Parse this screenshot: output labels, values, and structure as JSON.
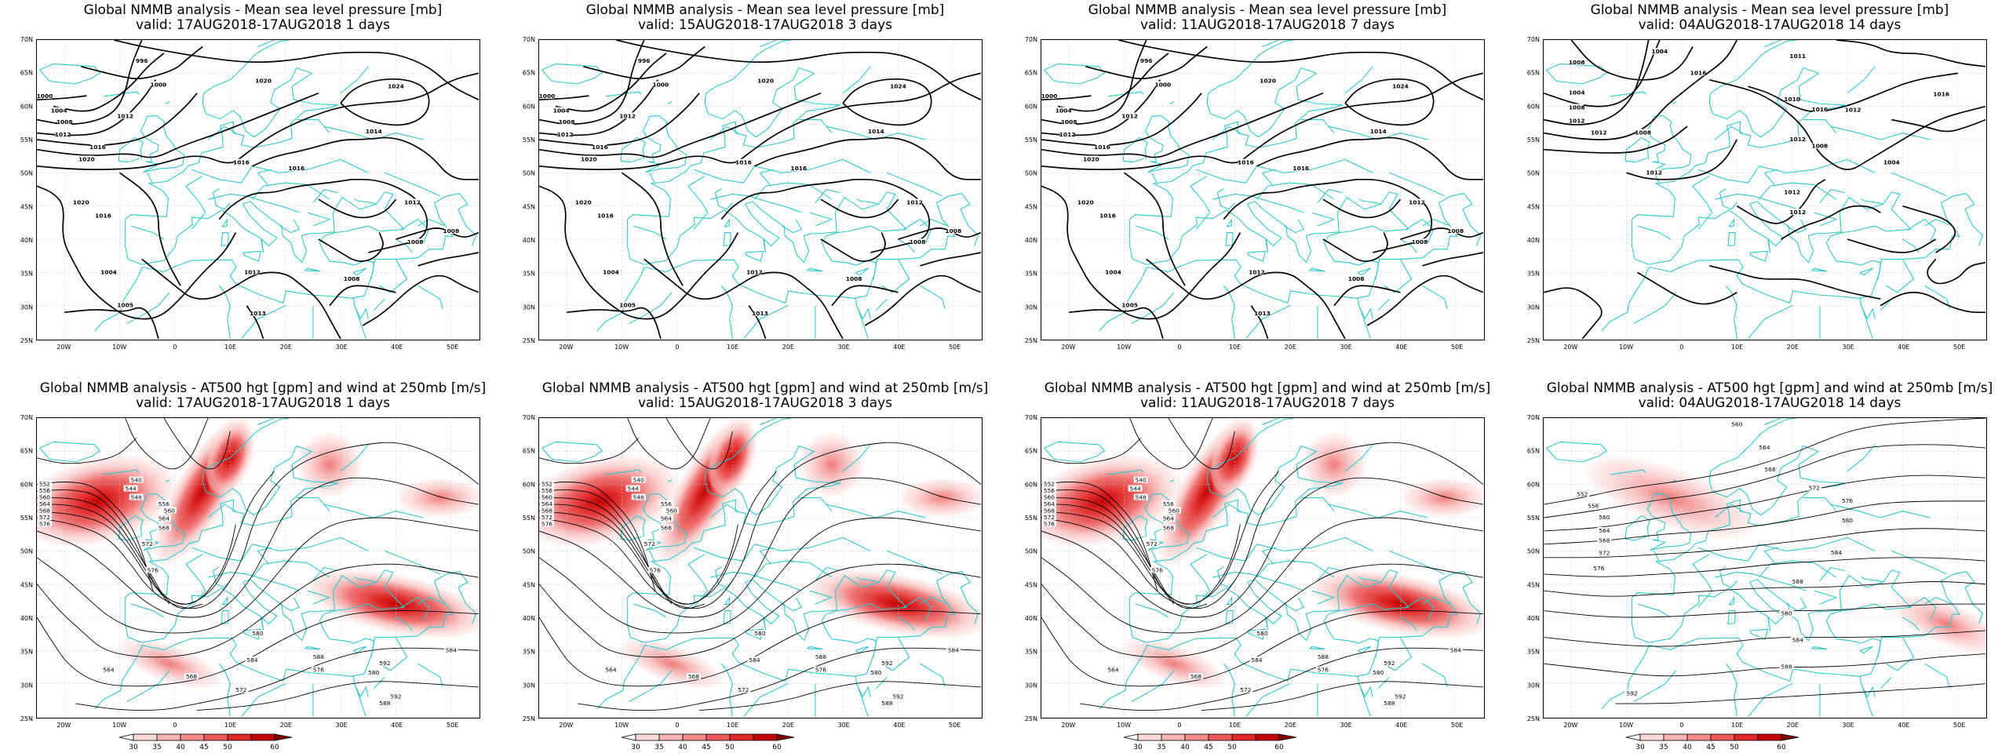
{
  "figure": {
    "rows": [
      {
        "kind": "mslp",
        "title": "Global NMMB analysis - Mean sea level pressure [mb]",
        "panels": [
          {
            "valid": "valid: 17AUG2018-17AUG2018   1 days",
            "contour_labels": [
              "1020",
              "996",
              "1000",
              "1000",
              "1004",
              "1008",
              "1012",
              "1012",
              "1016",
              "1020",
              "1024",
              "1014",
              "1016",
              "1016",
              "1020",
              "1016",
              "1012",
              "1008",
              "1008",
              "1004",
              "1012",
              "1005",
              "1013",
              "1008"
            ]
          },
          {
            "valid": "valid: 15AUG2018-17AUG2018   3 days",
            "contour_labels": [
              "1020",
              "996",
              "1000",
              "1000",
              "1004",
              "1008",
              "1012",
              "1012",
              "1016",
              "1020",
              "1024",
              "1014",
              "1016",
              "1016",
              "1020",
              "1016",
              "1012",
              "1008",
              "1008",
              "1004",
              "1012",
              "1005",
              "1013",
              "1008"
            ]
          },
          {
            "valid": "valid: 11AUG2018-17AUG2018   7 days",
            "contour_labels": [
              "1020",
              "996",
              "1000",
              "1000",
              "1004",
              "1008",
              "1012",
              "1012",
              "1016",
              "1020",
              "1024",
              "1014",
              "1016",
              "1016",
              "1020",
              "1016",
              "1012",
              "1008",
              "1008",
              "1004",
              "1012",
              "1005",
              "1013",
              "1008"
            ]
          },
          {
            "valid": "valid: 04AUG2018-17AUG2018   14 days",
            "contour_labels": [
              "1004",
              "1008",
              "1004",
              "1008",
              "1012",
              "1011",
              "1016",
              "1010",
              "1012",
              "1016",
              "1012",
              "1016",
              "1012",
              "1008",
              "1012",
              "1008",
              "1004",
              "1012",
              "1012"
            ]
          }
        ]
      },
      {
        "kind": "z500",
        "title": "Global NMMB analysis - AT500 hgt [gpm] and wind at 250mb [m/s]",
        "panels": [
          {
            "valid": "valid: 17AUG2018-17AUG2018   1 days",
            "contour_labels": [
              "552",
              "556",
              "560",
              "564",
              "568",
              "572",
              "576",
              "540",
              "544",
              "548",
              "556",
              "560",
              "564",
              "568",
              "572",
              "576",
              "580",
              "584",
              "588",
              "592",
              "564",
              "568",
              "572",
              "576",
              "580",
              "584",
              "588",
              "592"
            ]
          },
          {
            "valid": "valid: 15AUG2018-17AUG2018   3 days",
            "contour_labels": [
              "552",
              "556",
              "560",
              "564",
              "568",
              "572",
              "576",
              "540",
              "544",
              "548",
              "556",
              "560",
              "564",
              "568",
              "572",
              "576",
              "580",
              "584",
              "588",
              "592",
              "564",
              "568",
              "572",
              "576",
              "580",
              "584",
              "588",
              "592"
            ]
          },
          {
            "valid": "valid: 11AUG2018-17AUG2018   7 days",
            "contour_labels": [
              "552",
              "556",
              "560",
              "564",
              "568",
              "572",
              "576",
              "540",
              "544",
              "548",
              "556",
              "560",
              "564",
              "568",
              "572",
              "576",
              "580",
              "584",
              "588",
              "592",
              "564",
              "568",
              "572",
              "576",
              "580",
              "584",
              "588",
              "592"
            ]
          },
          {
            "valid": "valid: 04AUG2018-17AUG2018   14 days",
            "contour_labels": [
              "552",
              "556",
              "560",
              "564",
              "568",
              "572",
              "576",
              "560",
              "564",
              "568",
              "572",
              "576",
              "580",
              "584",
              "588",
              "580",
              "584",
              "588",
              "592"
            ]
          }
        ]
      }
    ],
    "axes": {
      "x_ticks": [
        "20W",
        "10W",
        "0",
        "10E",
        "20E",
        "30E",
        "40E",
        "50E"
      ],
      "y_ticks": [
        "70N",
        "65N",
        "60N",
        "55N",
        "50N",
        "45N",
        "40N",
        "35N",
        "30N",
        "25N"
      ],
      "lon_range": [
        -25,
        55
      ],
      "lat_range": [
        25,
        70
      ]
    },
    "colorbar": {
      "labels": [
        "30",
        "35",
        "40",
        "45",
        "50",
        "60"
      ],
      "colors": [
        "#ffffff",
        "#fcdada",
        "#f8b4b4",
        "#f28c8c",
        "#ec5a5a",
        "#e02828",
        "#c40000",
        "#800000"
      ]
    },
    "colors": {
      "coast": "#2ec8c8",
      "contour": "#000000",
      "grid": "#c8c8c8"
    }
  }
}
